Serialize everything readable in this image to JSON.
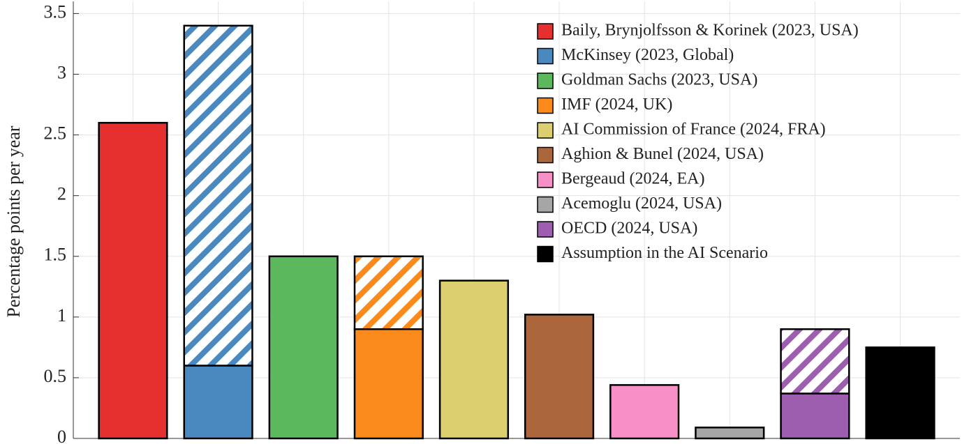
{
  "chart_data": {
    "type": "bar",
    "ylabel": "Percentage points per year",
    "categories": [
      "Baily, Brynjolfsson & Korinek (2023, USA)",
      "McKinsey (2023, Global)",
      "Goldman Sachs (2023, USA)",
      "IMF (2024, UK)",
      "AI Commission of France (2024, FRA)",
      "Aghion & Bunel (2024, USA)",
      "Bergeaud (2024, EA)",
      "Acemoglu (2024, USA)",
      "OECD (2024, USA)",
      "Assumption in the AI Scenario"
    ],
    "colors": [
      "#e63030",
      "#4a89c0",
      "#5cb85c",
      "#fb8a1c",
      "#dccf70",
      "#ab663c",
      "#f790c6",
      "#a6a6a6",
      "#9d5eaf",
      "#000000"
    ],
    "series": [
      {
        "values": [
          2.6,
          0.6,
          1.5,
          0.9,
          1.3,
          1.02,
          0.44,
          0.09,
          0.37,
          0.75
        ]
      },
      {
        "values": [
          null,
          2.8,
          null,
          0.6,
          null,
          null,
          null,
          null,
          0.53,
          null
        ],
        "pattern": "hatch"
      }
    ],
    "ylim": [
      0,
      3.6
    ],
    "yticks": [
      0,
      0.5,
      1,
      1.5,
      2,
      2.5,
      3,
      3.5
    ],
    "grid": true,
    "legend": "upper right"
  }
}
